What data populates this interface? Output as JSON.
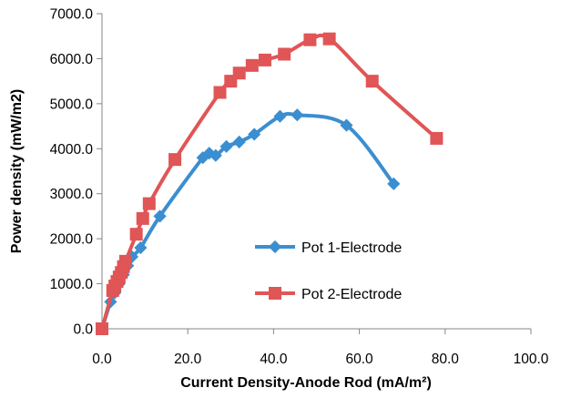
{
  "chart_data": {
    "type": "scatter",
    "title": "",
    "xlabel": "Current Density-Anode Rod (mA/m²)",
    "ylabel": "Power density (mW/m2)",
    "xlim": [
      0,
      100
    ],
    "ylim": [
      0,
      7000
    ],
    "x_ticks": [
      "0.0",
      "20.0",
      "40.0",
      "60.0",
      "80.0",
      "100.0"
    ],
    "y_ticks": [
      "0.0",
      "1000.0",
      "2000.0",
      "3000.0",
      "4000.0",
      "5000.0",
      "6000.0",
      "7000.0"
    ],
    "grid": false,
    "legend_position": "center-right",
    "smooth": true,
    "series": [
      {
        "name": "Pot 1-Electrode",
        "color": "#3b8ed0",
        "marker": "diamond",
        "points": [
          [
            0,
            0
          ],
          [
            2,
            600
          ],
          [
            3,
            800
          ],
          [
            4,
            1000
          ],
          [
            5,
            1200
          ],
          [
            6,
            1400
          ],
          [
            7,
            1600
          ],
          [
            9,
            1800
          ],
          [
            13.5,
            2500
          ],
          [
            23.5,
            3800
          ],
          [
            25,
            3900
          ],
          [
            26.5,
            3850
          ],
          [
            29,
            4050
          ],
          [
            32,
            4150
          ],
          [
            35.5,
            4320
          ],
          [
            41.5,
            4720
          ],
          [
            45.5,
            4750
          ],
          [
            57,
            4520
          ],
          [
            68,
            3220
          ]
        ]
      },
      {
        "name": "Pot 2-Electrode",
        "color": "#e05556",
        "marker": "square",
        "points": [
          [
            0,
            0
          ],
          [
            2.5,
            850
          ],
          [
            3,
            950
          ],
          [
            3.5,
            1050
          ],
          [
            4,
            1150
          ],
          [
            4.5,
            1250
          ],
          [
            5,
            1380
          ],
          [
            5.5,
            1500
          ],
          [
            8,
            2100
          ],
          [
            9.5,
            2450
          ],
          [
            11,
            2780
          ],
          [
            17,
            3760
          ],
          [
            27.5,
            5250
          ],
          [
            30,
            5500
          ],
          [
            32,
            5680
          ],
          [
            35,
            5850
          ],
          [
            38,
            5970
          ],
          [
            42.5,
            6100
          ],
          [
            48.5,
            6420
          ],
          [
            53,
            6440
          ],
          [
            63,
            5500
          ],
          [
            78,
            4230
          ]
        ]
      }
    ]
  }
}
